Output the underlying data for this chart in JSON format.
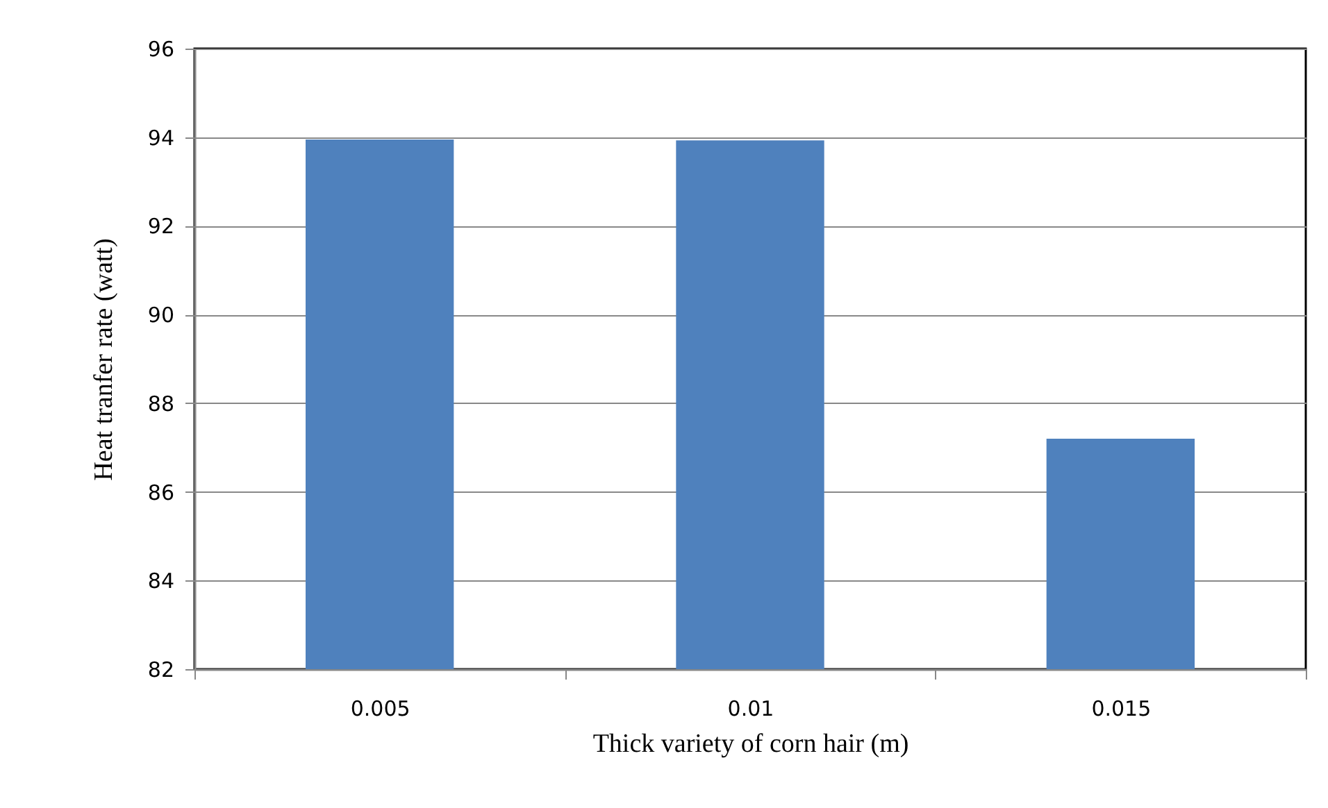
{
  "chart_data": {
    "type": "bar",
    "xlabel": "Thick variety of corn hair (m)",
    "ylabel": "Heat tranfer rate (watt)",
    "categories": [
      "0.005",
      "0.01",
      "0.015"
    ],
    "values": [
      93.95,
      93.93,
      87.2
    ],
    "color": "#4f81bd",
    "ylim": [
      82,
      96
    ],
    "yticks": [
      82,
      84,
      86,
      88,
      90,
      92,
      94,
      96
    ],
    "grid": "y"
  }
}
